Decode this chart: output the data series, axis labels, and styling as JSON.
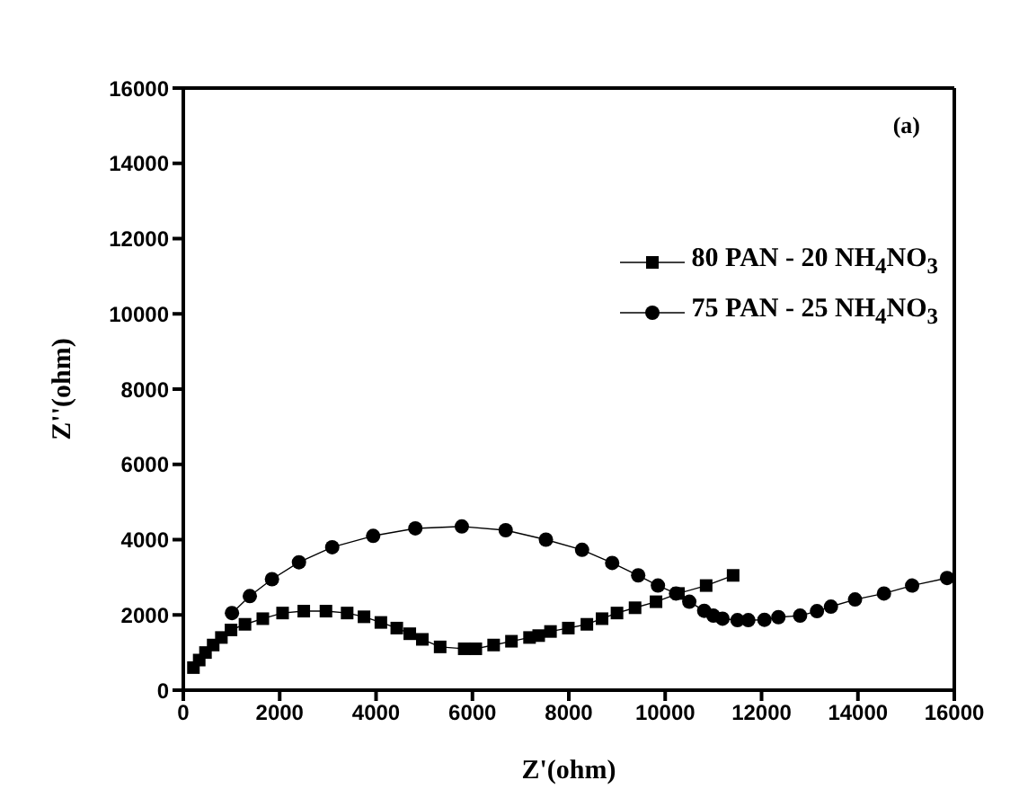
{
  "chart_data": {
    "type": "line",
    "xlabel": "Z'(ohm)",
    "ylabel": "Z''(ohm)",
    "annotations": [
      "(a)"
    ],
    "xlim": [
      0,
      16000
    ],
    "xticks": [
      0,
      2000,
      4000,
      6000,
      8000,
      10000,
      12000,
      14000,
      16000
    ],
    "ylim": [
      0,
      16000
    ],
    "yticks": [
      0,
      2000,
      4000,
      6000,
      8000,
      10000,
      12000,
      14000,
      16000
    ],
    "legend": "top right",
    "line_style": "solid",
    "series": [
      {
        "name": "80 PAN - 20 NH$_{4}$NO$_{3}$",
        "color": "#000000",
        "marker": "square",
        "x": [
          210,
          330,
          460,
          620,
          790,
          990,
          1280,
          1650,
          2060,
          2500,
          2960,
          3400,
          3750,
          4100,
          4430,
          4700,
          4960,
          5330,
          5830,
          6070,
          6440,
          6810,
          7185,
          7375,
          7620,
          7990,
          8375,
          8690,
          9000,
          9375,
          9810,
          10275,
          10850,
          11410
        ],
        "values": [
          600,
          800,
          1000,
          1200,
          1400,
          1600,
          1750,
          1900,
          2050,
          2100,
          2100,
          2050,
          1950,
          1800,
          1650,
          1500,
          1350,
          1150,
          1100,
          1100,
          1200,
          1300,
          1400,
          1450,
          1560,
          1650,
          1750,
          1900,
          2050,
          2190,
          2350,
          2570,
          2780,
          3050
        ]
      },
      {
        "name": "75 PAN - 25 NH$_{4}$NO$_{3}$",
        "color": "#000000",
        "marker": "circle",
        "x": [
          1010,
          1380,
          1840,
          2400,
          3090,
          3940,
          4815,
          5780,
          6690,
          7525,
          8275,
          8900,
          9440,
          9850,
          10225,
          10500,
          10810,
          11000,
          11190,
          11500,
          11725,
          12060,
          12350,
          12800,
          13150,
          13440,
          13940,
          14540,
          15125,
          15850
        ],
        "values": [
          2050,
          2500,
          2950,
          3400,
          3800,
          4100,
          4300,
          4350,
          4250,
          4000,
          3730,
          3380,
          3050,
          2780,
          2570,
          2350,
          2110,
          1980,
          1900,
          1860,
          1860,
          1870,
          1940,
          1980,
          2100,
          2220,
          2410,
          2570,
          2780,
          2980
        ]
      }
    ]
  }
}
